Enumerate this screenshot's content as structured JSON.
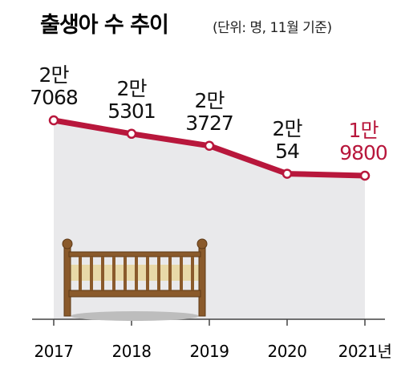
{
  "chart_data": {
    "type": "line",
    "title": "출생아 수 추이",
    "subtitle": "(단위: 명, 11월 기준)",
    "categories": [
      "2017",
      "2018",
      "2019",
      "2020",
      "2021년"
    ],
    "series": [
      {
        "color": "#b8173c",
        "values": [
          27068,
          25301,
          23727,
          20054,
          19800
        ],
        "value_labels": [
          "2만\n7068",
          "2만\n5301",
          "2만\n3727",
          "2만\n54",
          "1만\n9800"
        ]
      }
    ]
  }
}
